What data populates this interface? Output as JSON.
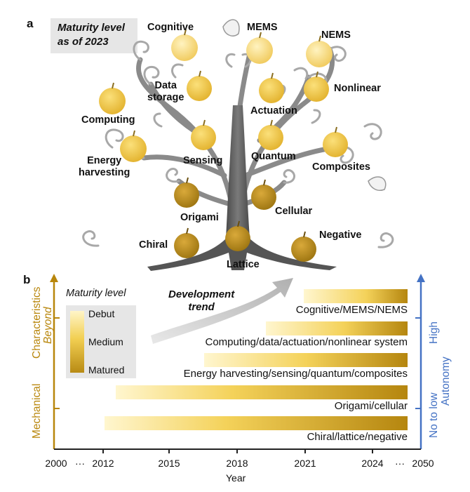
{
  "panel_a": {
    "letter": "a",
    "maturity_note": [
      "Maturity level",
      "as of 2023"
    ],
    "apples": [
      {
        "name": "Cognitive",
        "level": "debut"
      },
      {
        "name": "MEMS",
        "level": "debut"
      },
      {
        "name": "NEMS",
        "level": "debut"
      },
      {
        "name": "Data storage",
        "level": "medium"
      },
      {
        "name": "Nonlinear",
        "level": "medium"
      },
      {
        "name": "Computing",
        "level": "medium"
      },
      {
        "name": "Actuation",
        "level": "medium"
      },
      {
        "name": "Energy harvesting",
        "level": "medium"
      },
      {
        "name": "Sensing",
        "level": "medium"
      },
      {
        "name": "Quantum",
        "level": "medium"
      },
      {
        "name": "Composites",
        "level": "medium"
      },
      {
        "name": "Origami",
        "level": "matured"
      },
      {
        "name": "Cellular",
        "level": "matured"
      },
      {
        "name": "Chiral",
        "level": "matured"
      },
      {
        "name": "Lattice",
        "level": "matured"
      },
      {
        "name": "Negative",
        "level": "matured"
      }
    ],
    "labels": {
      "cognitive": "Cognitive",
      "mems": "MEMS",
      "nems": "NEMS",
      "data_storage": [
        "Data",
        "storage"
      ],
      "nonlinear": "Nonlinear",
      "computing": "Computing",
      "actuation": "Actuation",
      "energy_harvesting": [
        "Energy",
        "harvesting"
      ],
      "sensing": "Sensing",
      "quantum": "Quantum",
      "composites": "Composites",
      "origami": "Origami",
      "cellular": "Cellular",
      "chiral": "Chiral",
      "lattice": "Lattice",
      "negative": "Negative"
    }
  },
  "panel_b": {
    "letter": "b",
    "legend": {
      "title": "Maturity level",
      "debut": "Debut",
      "medium": "Medium",
      "matured": "Matured"
    },
    "development_trend": [
      "Development",
      "trend"
    ],
    "left_axis": {
      "mechanical": "Mechanical",
      "characteristics": "Characteristics",
      "beyond": "Beyond"
    },
    "right_axis": {
      "no_to_low": "No to low",
      "autonomy": "Autonomy",
      "high": "High"
    },
    "x_axis": {
      "title": "Year",
      "ticks": [
        "2000",
        "···",
        "2012",
        "2015",
        "2018",
        "2021",
        "2024",
        "···",
        "2050"
      ]
    },
    "bars": [
      {
        "label": "Cognitive/MEMS/NEMS",
        "start": 2021,
        "end": "2024+"
      },
      {
        "label": "Computing/data/actuation/nonlinear system",
        "start": 2019.5,
        "end": "2024+"
      },
      {
        "label": "Energy harvesting/sensing/quantum/composites",
        "start": 2016.5,
        "end": "2024+"
      },
      {
        "label": "Origami/cellular",
        "start": 2012.5,
        "end": "2024+"
      },
      {
        "label": "Chiral/lattice/negative",
        "start": 2012,
        "end": "2024+"
      }
    ],
    "colors": {
      "gold": "#b8860b",
      "blue": "#4472c4",
      "debut": "#fff5c8",
      "medium": "#f2cf52",
      "matured": "#b88b14"
    }
  }
}
